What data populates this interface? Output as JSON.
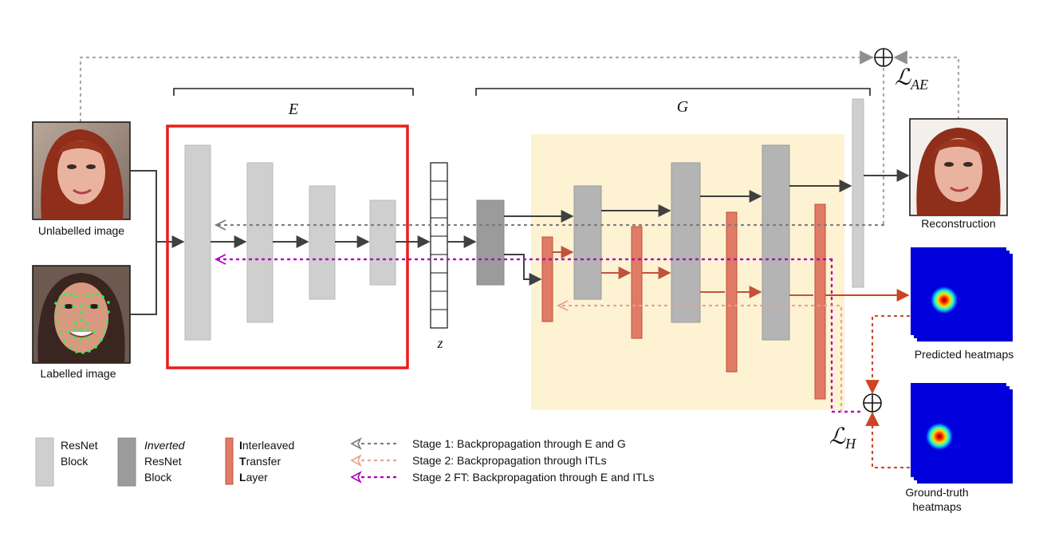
{
  "labels": {
    "encoder": "E",
    "generator": "G",
    "latent": "z",
    "loss_ae_main": "ℒ",
    "loss_ae_sub": "AE",
    "loss_h_main": "ℒ",
    "loss_h_sub": "H",
    "unlabelled": "Unlabelled image",
    "labelled": "Labelled image",
    "reconstruction": "Reconstruction",
    "predicted": "Predicted heatmaps",
    "ground_truth_1": "Ground-truth",
    "ground_truth_2": "heatmaps"
  },
  "legend": {
    "resnet_1": "ResNet",
    "resnet_2": "Block",
    "inverted_1": "Inverted",
    "inverted_2": "ResNet",
    "inverted_3": "Block",
    "itl_1_initial": "I",
    "itl_1_rest": "nterleaved",
    "itl_2_initial": "T",
    "itl_2_rest": "ransfer",
    "itl_3_initial": "L",
    "itl_3_rest": "ayer",
    "stage1": "Stage 1: Backpropagation through E and G",
    "stage2": "Stage 2: Backpropagation through ITLs",
    "stage2ft": "Stage 2 FT: Backpropagation through E and ITLs"
  },
  "colors": {
    "resnet": "#cfcfcf",
    "inverted": "#9b9b9b",
    "itl": "#e07b66",
    "itl_stroke": "#c0503a",
    "stage1_line": "#7a7a7a",
    "stage2_line": "#e8a090",
    "stage2ft_line": "#b000c0",
    "highlight_bg": "#fdf2d2",
    "encoder_box": "#ee1c1c",
    "arrow": "#404040",
    "heatmap_arrow": "#cc4422"
  }
}
